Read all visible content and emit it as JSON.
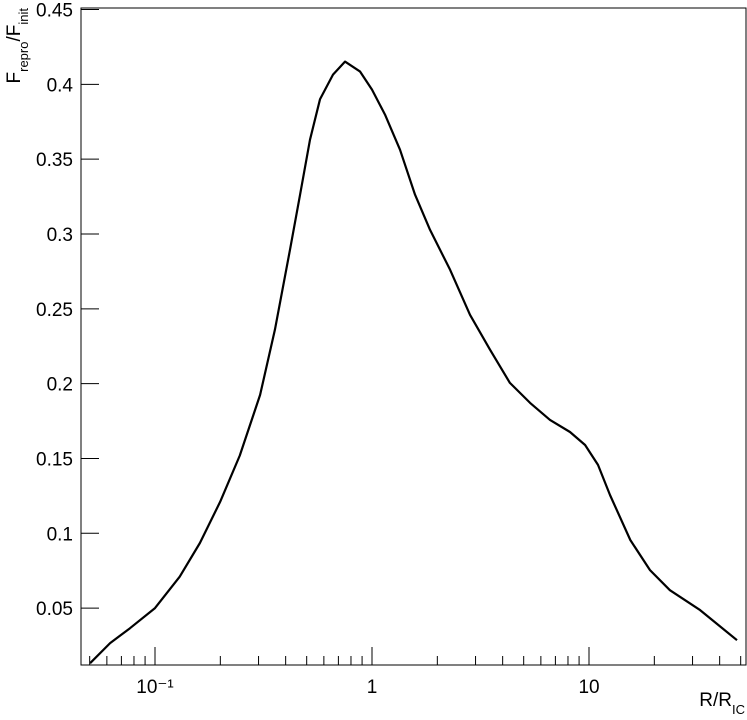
{
  "chart_data": {
    "type": "line",
    "xscale": "log",
    "color": "#000000",
    "ylabel": [
      {
        "text": "F"
      },
      {
        "text": "repro",
        "sub": true
      },
      {
        "text": "/F"
      },
      {
        "text": "init",
        "sub": true
      }
    ],
    "xlabel": [
      {
        "text": "R/R"
      },
      {
        "text": "IC",
        "sub": true
      }
    ],
    "x": [
      0.0502,
      0.0621,
      0.0767,
      0.1,
      0.13,
      0.161,
      0.1995,
      0.246,
      0.305,
      0.357,
      0.419,
      0.466,
      0.518,
      0.576,
      0.661,
      0.751,
      0.881,
      1,
      1.148,
      1.346,
      1.578,
      1.85,
      2.29,
      2.83,
      3.5,
      4.32,
      5.35,
      6.61,
      8.17,
      9.59,
      11.0,
      12.5,
      15.5,
      19.1,
      23.6,
      32.5,
      48.1
    ],
    "values": [
      0.0132,
      0.0266,
      0.0366,
      0.05,
      0.071,
      0.0935,
      0.121,
      0.152,
      0.1925,
      0.236,
      0.2895,
      0.326,
      0.363,
      0.39,
      0.4065,
      0.4152,
      0.4085,
      0.3965,
      0.3798,
      0.3563,
      0.3263,
      0.3028,
      0.2761,
      0.246,
      0.2226,
      0.2005,
      0.1871,
      0.1758,
      0.1677,
      0.159,
      0.1457,
      0.1256,
      0.0955,
      0.0754,
      0.062,
      0.0487,
      0.0286
    ],
    "xlim": [
      0.0456,
      52.9
    ],
    "ylim": [
      0.012,
      0.451
    ],
    "xticks": [
      {
        "value": 0.1,
        "label": "10⁻¹"
      },
      1,
      10
    ],
    "xminorticks": [
      0.05,
      0.06,
      0.07,
      0.08,
      0.09,
      0.2,
      0.3,
      0.4,
      0.5,
      0.6,
      0.7,
      0.8,
      0.9,
      2,
      3,
      4,
      5,
      6,
      7,
      8,
      9,
      20,
      30,
      40,
      50
    ],
    "yticks": [
      0.05,
      0.1,
      0.15,
      0.2,
      0.25,
      0.3,
      0.35,
      0.4,
      0.45
    ]
  }
}
